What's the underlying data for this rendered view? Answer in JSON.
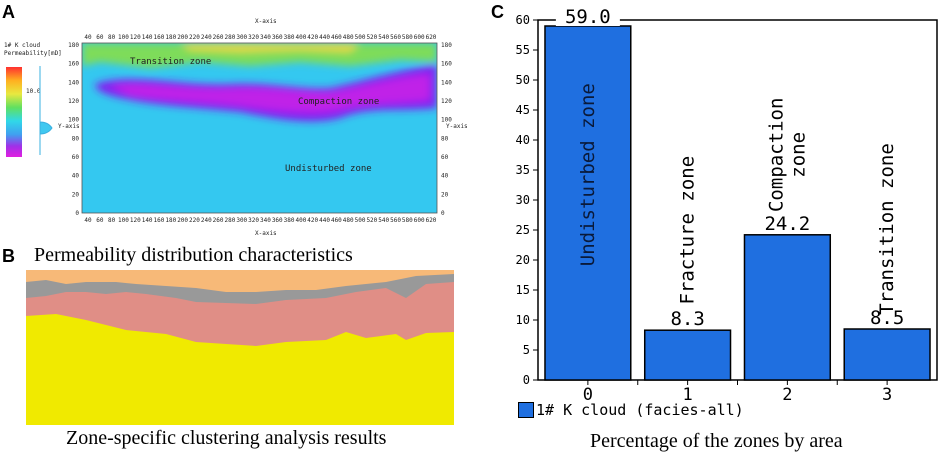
{
  "panel_letters": {
    "a": "A",
    "b": "B",
    "c": "C"
  },
  "panel_a": {
    "axis_label_top": "X-axis",
    "axis_label_bottom": "X-axis",
    "axis_label_left": "Y-axis",
    "axis_label_right": "Y-axis",
    "legend_title": "1# K cloud",
    "legend_sub": "Permeability[mD]",
    "legend_value": "10.0",
    "x_ticks": [
      "40",
      "60",
      "80",
      "100",
      "120",
      "140",
      "160",
      "180",
      "200",
      "220",
      "240",
      "260",
      "280",
      "300",
      "320",
      "340",
      "360",
      "380",
      "400",
      "420",
      "440",
      "460",
      "480",
      "500",
      "520",
      "540",
      "560",
      "580",
      "600",
      "620"
    ],
    "y_ticks": [
      "180",
      "160",
      "140",
      "120",
      "100",
      "80",
      "60",
      "40",
      "20",
      "0"
    ],
    "zones": {
      "transition": "Transition zone",
      "compaction": "Compaction zone",
      "undisturbed": "Undisturbed zone"
    },
    "colors": {
      "cyan": "#34c8f0",
      "magenta": "#c020e8",
      "purple": "#8020f0",
      "green": "#7edc5a",
      "yellow": "#e8d840"
    }
  },
  "panel_b": {
    "title": "Permeability distribution characteristics",
    "caption": "Zone-specific clustering analysis results",
    "colors": {
      "orange": "#f7b978",
      "gray": "#999999",
      "pink": "#e08e86",
      "yellow": "#f0ea00"
    }
  },
  "chart_data": {
    "type": "bar",
    "title": "",
    "xlabel": "Percentage of the zones by area",
    "ylabel": "",
    "ylim": [
      0,
      60
    ],
    "y_ticks": [
      0,
      5,
      10,
      15,
      20,
      25,
      30,
      35,
      40,
      45,
      50,
      55,
      60
    ],
    "categories": [
      "0",
      "1",
      "2",
      "3"
    ],
    "series": [
      {
        "name": "1# K cloud (facies-all)",
        "values": [
          59.0,
          8.3,
          24.2,
          8.5
        ]
      }
    ],
    "value_labels": [
      "59.0",
      "8.3",
      "24.2",
      "8.5"
    ],
    "bar_texts": [
      [
        "Undisturbed zone"
      ],
      [
        "Fracture zone"
      ],
      [
        "Compaction",
        "zone"
      ],
      [
        "Transition zone"
      ]
    ],
    "bar_color": "#1f6fe0",
    "legend": "1# K cloud (facies-all)"
  }
}
